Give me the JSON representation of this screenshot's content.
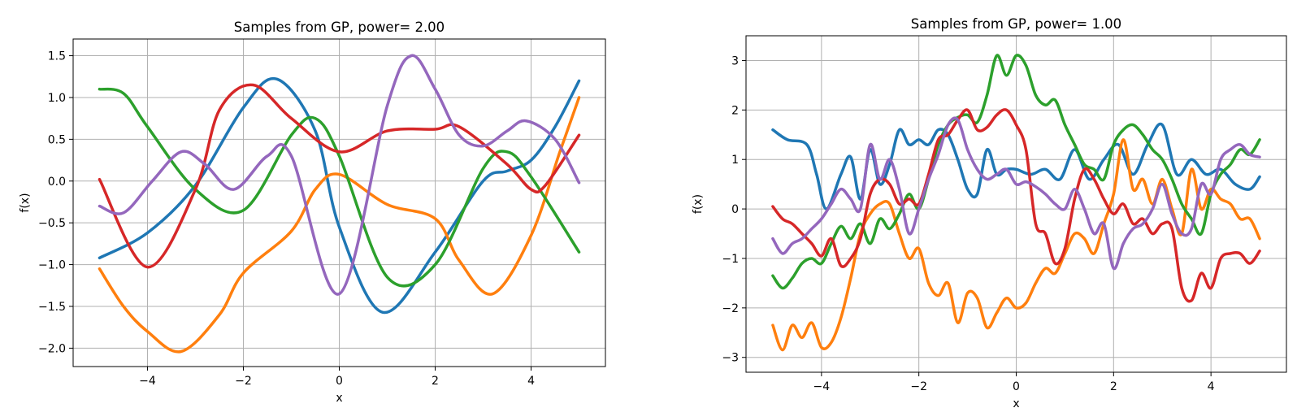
{
  "chart_data": [
    {
      "type": "line",
      "title": "Samples from GP, power= 2.00",
      "xlabel": "x",
      "ylabel": "f(x)",
      "xlim": [
        -5.55,
        5.55
      ],
      "ylim": [
        -2.22,
        1.7
      ],
      "xticks": [
        -4,
        -2,
        0,
        2,
        4
      ],
      "xtick_labels": [
        "−4",
        "−2",
        "0",
        "2",
        "4"
      ],
      "yticks": [
        -2.0,
        -1.5,
        -1.0,
        -0.5,
        0.0,
        0.5,
        1.0,
        1.5
      ],
      "ytick_labels": [
        "−2.0",
        "−1.5",
        "−1.0",
        "−0.5",
        "0.0",
        "0.5",
        "1.0",
        "1.5"
      ],
      "grid": true,
      "series": [
        {
          "color": "#1f77b4",
          "x": [
            -5,
            -4,
            -3,
            -2,
            -1.3,
            -0.5,
            0,
            0.9,
            2,
            3,
            3.5,
            4,
            4.5,
            5
          ],
          "y": [
            -0.92,
            -0.62,
            -0.05,
            0.88,
            1.22,
            0.6,
            -0.55,
            -1.57,
            -0.85,
            0.0,
            0.12,
            0.25,
            0.65,
            1.2
          ]
        },
        {
          "color": "#ff7f0e",
          "x": [
            -5,
            -4.5,
            -4,
            -3.3,
            -2.5,
            -2,
            -1,
            -0.5,
            0,
            1,
            2,
            2.5,
            3.2,
            4,
            4.6,
            5
          ],
          "y": [
            -1.05,
            -1.5,
            -1.8,
            -2.04,
            -1.6,
            -1.1,
            -0.6,
            -0.1,
            0.08,
            -0.28,
            -0.45,
            -0.95,
            -1.35,
            -0.65,
            0.35,
            1.0
          ]
        },
        {
          "color": "#2ca02c",
          "x": [
            -5,
            -4.5,
            -4,
            -3,
            -2,
            -1,
            -0.5,
            0,
            1,
            2,
            3,
            3.5,
            4,
            5
          ],
          "y": [
            1.1,
            1.05,
            0.65,
            -0.1,
            -0.35,
            0.55,
            0.75,
            0.3,
            -1.15,
            -1.0,
            0.15,
            0.35,
            0.05,
            -0.85
          ]
        },
        {
          "color": "#d62728",
          "x": [
            -5,
            -4,
            -3,
            -2.5,
            -1.8,
            -1,
            0,
            1,
            2,
            2.5,
            3.5,
            4,
            4.3,
            5
          ],
          "y": [
            0.02,
            -1.03,
            -0.1,
            0.85,
            1.15,
            0.75,
            0.35,
            0.6,
            0.62,
            0.65,
            0.2,
            -0.1,
            -0.05,
            0.55
          ]
        },
        {
          "color": "#9467bd",
          "x": [
            -5,
            -4.5,
            -3.9,
            -3.3,
            -2.8,
            -2.2,
            -1.5,
            -1,
            0,
            1,
            1.5,
            2,
            2.5,
            3,
            3.5,
            3.9,
            4.5,
            5
          ],
          "y": [
            -0.3,
            -0.38,
            0.0,
            0.35,
            0.2,
            -0.1,
            0.3,
            0.3,
            -1.35,
            0.9,
            1.5,
            1.1,
            0.55,
            0.42,
            0.6,
            0.72,
            0.5,
            -0.02
          ]
        }
      ]
    },
    {
      "type": "line",
      "title": "Samples from GP, power= 1.00",
      "xlabel": "x",
      "ylabel": "f(x)",
      "xlim": [
        -5.55,
        5.55
      ],
      "ylim": [
        -3.3,
        3.5
      ],
      "xticks": [
        -4,
        -2,
        0,
        2,
        4
      ],
      "xtick_labels": [
        "−4",
        "−2",
        "0",
        "2",
        "4"
      ],
      "yticks": [
        -3,
        -2,
        -1,
        0,
        1,
        2,
        3
      ],
      "ytick_labels": [
        "−3",
        "−2",
        "−1",
        "0",
        "1",
        "2",
        "3"
      ],
      "grid": true,
      "series": [
        {
          "color": "#1f77b4",
          "x": [
            -5,
            -4.7,
            -4.3,
            -4.1,
            -3.9,
            -3.6,
            -3.4,
            -3.2,
            -3,
            -2.8,
            -2.6,
            -2.4,
            -2.2,
            -2,
            -1.8,
            -1.6,
            -1.4,
            -1.2,
            -1,
            -0.8,
            -0.6,
            -0.4,
            -0.2,
            0,
            0.3,
            0.6,
            0.9,
            1.2,
            1.5,
            1.8,
            2.1,
            2.4,
            2.7,
            3,
            3.3,
            3.6,
            3.9,
            4.2,
            4.5,
            4.8,
            5
          ],
          "y": [
            1.6,
            1.4,
            1.3,
            0.7,
            0.0,
            0.7,
            1.05,
            0.2,
            1.2,
            0.5,
            0.9,
            1.6,
            1.3,
            1.4,
            1.3,
            1.6,
            1.5,
            1.0,
            0.4,
            0.3,
            1.2,
            0.7,
            0.8,
            0.8,
            0.7,
            0.8,
            0.6,
            1.2,
            0.6,
            1.0,
            1.3,
            0.7,
            1.3,
            1.7,
            0.7,
            1.0,
            0.7,
            0.8,
            0.5,
            0.4,
            0.65
          ]
        },
        {
          "color": "#ff7f0e",
          "x": [
            -5,
            -4.8,
            -4.6,
            -4.4,
            -4.2,
            -4,
            -3.8,
            -3.6,
            -3.4,
            -3.2,
            -3,
            -2.8,
            -2.6,
            -2.4,
            -2.2,
            -2,
            -1.8,
            -1.6,
            -1.4,
            -1.2,
            -1,
            -0.8,
            -0.6,
            -0.4,
            -0.2,
            0,
            0.2,
            0.4,
            0.6,
            0.8,
            1,
            1.2,
            1.4,
            1.6,
            1.8,
            2,
            2.2,
            2.4,
            2.6,
            2.8,
            3,
            3.2,
            3.4,
            3.6,
            3.8,
            4,
            4.2,
            4.4,
            4.6,
            4.8,
            5
          ],
          "y": [
            -2.35,
            -2.85,
            -2.35,
            -2.6,
            -2.3,
            -2.8,
            -2.7,
            -2.2,
            -1.4,
            -0.5,
            -0.1,
            0.1,
            0.1,
            -0.5,
            -1.0,
            -0.8,
            -1.5,
            -1.75,
            -1.5,
            -2.3,
            -1.7,
            -1.8,
            -2.4,
            -2.1,
            -1.8,
            -2.0,
            -1.9,
            -1.5,
            -1.2,
            -1.3,
            -0.9,
            -0.5,
            -0.6,
            -0.9,
            -0.3,
            0.3,
            1.4,
            0.4,
            0.6,
            0.1,
            0.6,
            0.0,
            -0.5,
            0.8,
            0.0,
            0.4,
            0.2,
            0.1,
            -0.2,
            -0.2,
            -0.6
          ]
        },
        {
          "color": "#2ca02c",
          "x": [
            -5,
            -4.8,
            -4.6,
            -4.4,
            -4.2,
            -4,
            -3.8,
            -3.6,
            -3.4,
            -3.2,
            -3,
            -2.8,
            -2.6,
            -2.4,
            -2.2,
            -2,
            -1.8,
            -1.6,
            -1.4,
            -1.2,
            -1,
            -0.8,
            -0.6,
            -0.4,
            -0.2,
            0,
            0.2,
            0.4,
            0.6,
            0.8,
            1,
            1.2,
            1.4,
            1.6,
            1.8,
            2,
            2.2,
            2.4,
            2.6,
            2.8,
            3,
            3.2,
            3.4,
            3.6,
            3.8,
            4,
            4.2,
            4.4,
            4.6,
            4.8,
            5
          ],
          "y": [
            -1.35,
            -1.6,
            -1.4,
            -1.1,
            -1.0,
            -1.1,
            -0.7,
            -0.35,
            -0.6,
            -0.3,
            -0.7,
            -0.2,
            -0.4,
            -0.1,
            0.3,
            0.0,
            0.6,
            1.3,
            1.7,
            1.85,
            1.9,
            1.75,
            2.3,
            3.1,
            2.7,
            3.1,
            2.9,
            2.3,
            2.1,
            2.2,
            1.7,
            1.3,
            0.9,
            0.8,
            0.6,
            1.3,
            1.6,
            1.7,
            1.5,
            1.2,
            1.0,
            0.6,
            0.1,
            -0.2,
            -0.5,
            0.3,
            0.7,
            0.9,
            1.2,
            1.1,
            1.4
          ]
        },
        {
          "color": "#d62728",
          "x": [
            -5,
            -4.8,
            -4.6,
            -4.4,
            -4.2,
            -4,
            -3.8,
            -3.6,
            -3.4,
            -3.2,
            -3,
            -2.8,
            -2.6,
            -2.4,
            -2.2,
            -2,
            -1.8,
            -1.6,
            -1.4,
            -1.2,
            -1,
            -0.8,
            -0.6,
            -0.4,
            -0.2,
            0,
            0.2,
            0.4,
            0.6,
            0.8,
            1,
            1.2,
            1.4,
            1.6,
            1.8,
            2,
            2.2,
            2.4,
            2.6,
            2.8,
            3,
            3.2,
            3.4,
            3.6,
            3.8,
            4,
            4.2,
            4.4,
            4.6,
            4.8,
            5
          ],
          "y": [
            0.05,
            -0.2,
            -0.3,
            -0.5,
            -0.7,
            -0.95,
            -0.6,
            -1.15,
            -1.0,
            -0.6,
            0.3,
            0.6,
            0.5,
            0.1,
            0.2,
            0.1,
            0.7,
            1.4,
            1.5,
            1.8,
            2.0,
            1.6,
            1.65,
            1.9,
            2.0,
            1.7,
            1.2,
            -0.3,
            -0.5,
            -1.1,
            -0.8,
            0.2,
            0.8,
            0.6,
            0.2,
            -0.1,
            0.1,
            -0.3,
            -0.2,
            -0.5,
            -0.3,
            -0.4,
            -1.6,
            -1.85,
            -1.3,
            -1.6,
            -1.0,
            -0.9,
            -0.9,
            -1.1,
            -0.85
          ]
        },
        {
          "color": "#9467bd",
          "x": [
            -5,
            -4.8,
            -4.6,
            -4.4,
            -4.2,
            -4,
            -3.8,
            -3.6,
            -3.4,
            -3.2,
            -3,
            -2.8,
            -2.6,
            -2.4,
            -2.2,
            -2,
            -1.8,
            -1.6,
            -1.4,
            -1.2,
            -1,
            -0.8,
            -0.6,
            -0.4,
            -0.2,
            0,
            0.2,
            0.4,
            0.6,
            0.8,
            1,
            1.2,
            1.4,
            1.6,
            1.8,
            2,
            2.2,
            2.4,
            2.6,
            2.8,
            3,
            3.2,
            3.4,
            3.6,
            3.8,
            4,
            4.2,
            4.4,
            4.6,
            4.8,
            5
          ],
          "y": [
            -0.6,
            -0.9,
            -0.7,
            -0.6,
            -0.4,
            -0.2,
            0.1,
            0.4,
            0.2,
            0.0,
            1.3,
            0.6,
            1.0,
            0.4,
            -0.5,
            0.0,
            0.6,
            1.1,
            1.7,
            1.8,
            1.2,
            0.8,
            0.6,
            0.7,
            0.8,
            0.5,
            0.55,
            0.45,
            0.3,
            0.1,
            0.0,
            0.4,
            0.0,
            -0.5,
            -0.3,
            -1.2,
            -0.7,
            -0.4,
            -0.3,
            0.0,
            0.5,
            -0.1,
            -0.5,
            -0.4,
            0.5,
            0.3,
            1.0,
            1.2,
            1.3,
            1.1,
            1.05
          ]
        }
      ]
    }
  ]
}
